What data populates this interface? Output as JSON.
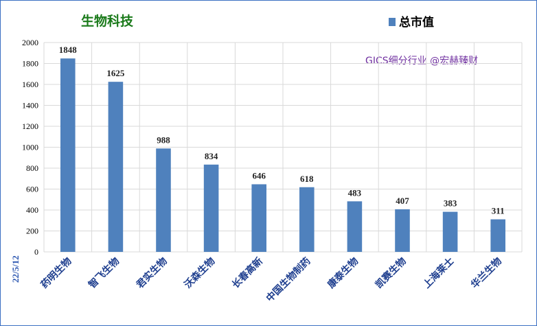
{
  "chart_data": {
    "type": "bar",
    "title": "生物科技",
    "note": "GICS细分行业 @宏赫臻财",
    "date_label": "22/5/12",
    "categories": [
      "药明生物",
      "智飞生物",
      "君实生物",
      "沃森生物",
      "长春高新",
      "中国生物制药",
      "康泰生物",
      "凯赛生物",
      "上海莱士",
      "华兰生物"
    ],
    "series": [
      {
        "name": "总市值",
        "values": [
          1848,
          1625,
          988,
          834,
          646,
          618,
          483,
          407,
          383,
          311
        ]
      }
    ],
    "yticks": [
      0,
      200,
      400,
      600,
      800,
      1000,
      1200,
      1400,
      1600,
      1800,
      2000
    ],
    "ylim": [
      0,
      2000
    ],
    "xlabel": "",
    "ylabel": "",
    "grid": true,
    "legend_position": "top-right",
    "colors": {
      "bar": "#4f81bd",
      "grid": "#d9d9d9",
      "title": "#1a7a1a",
      "note": "#7030a0",
      "category": "#1f3f8f",
      "border": "#3b6fc2"
    }
  }
}
